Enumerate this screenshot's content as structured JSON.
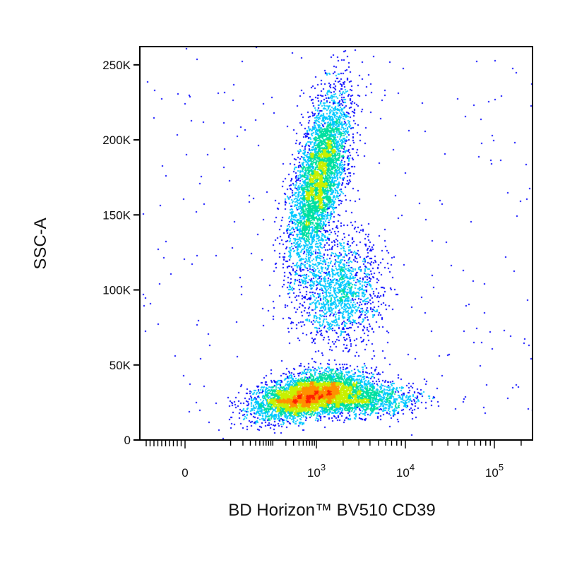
{
  "chart_data": {
    "type": "scatter",
    "subtype": "flow-cytometry-density-plot",
    "title": "",
    "xlabel": "BD Horizon™ BV510 CD39",
    "ylabel": "SSC-A",
    "x_scale": "biexponential",
    "x_ticks": [
      {
        "value": 0,
        "label": "0",
        "sup": ""
      },
      {
        "value": 1000,
        "label": "10",
        "sup": "3"
      },
      {
        "value": 10000,
        "label": "10",
        "sup": "4"
      },
      {
        "value": 100000,
        "label": "10",
        "sup": "5"
      }
    ],
    "y_scale": "linear",
    "ylim": [
      0,
      262144
    ],
    "y_ticks": [
      {
        "value": 0,
        "label": "0"
      },
      {
        "value": 50000,
        "label": "50K"
      },
      {
        "value": 100000,
        "label": "100K"
      },
      {
        "value": 150000,
        "label": "150K"
      },
      {
        "value": 200000,
        "label": "200K"
      },
      {
        "value": 250000,
        "label": "250K"
      }
    ],
    "grid": false,
    "legend": "none",
    "colormap": [
      "#0000ff",
      "#00c8ff",
      "#00e0a0",
      "#c8f000",
      "#ff9000",
      "#ff2000"
    ],
    "populations": [
      {
        "x_center": 60,
        "y_center": 30000,
        "x_spread": "low",
        "y_spread": "moderate",
        "density": "highest"
      },
      {
        "x_center": 1100,
        "y_center": 175000,
        "x_spread": "narrow",
        "y_spread": "wide",
        "density": "high"
      },
      {
        "x_center": 1800,
        "y_center": 100000,
        "x_spread": "moderate",
        "y_spread": "moderate",
        "density": "low"
      },
      {
        "x_center": 2500,
        "y_center": 28000,
        "x_spread": "moderate",
        "y_spread": "narrow",
        "density": "medium"
      }
    ]
  }
}
